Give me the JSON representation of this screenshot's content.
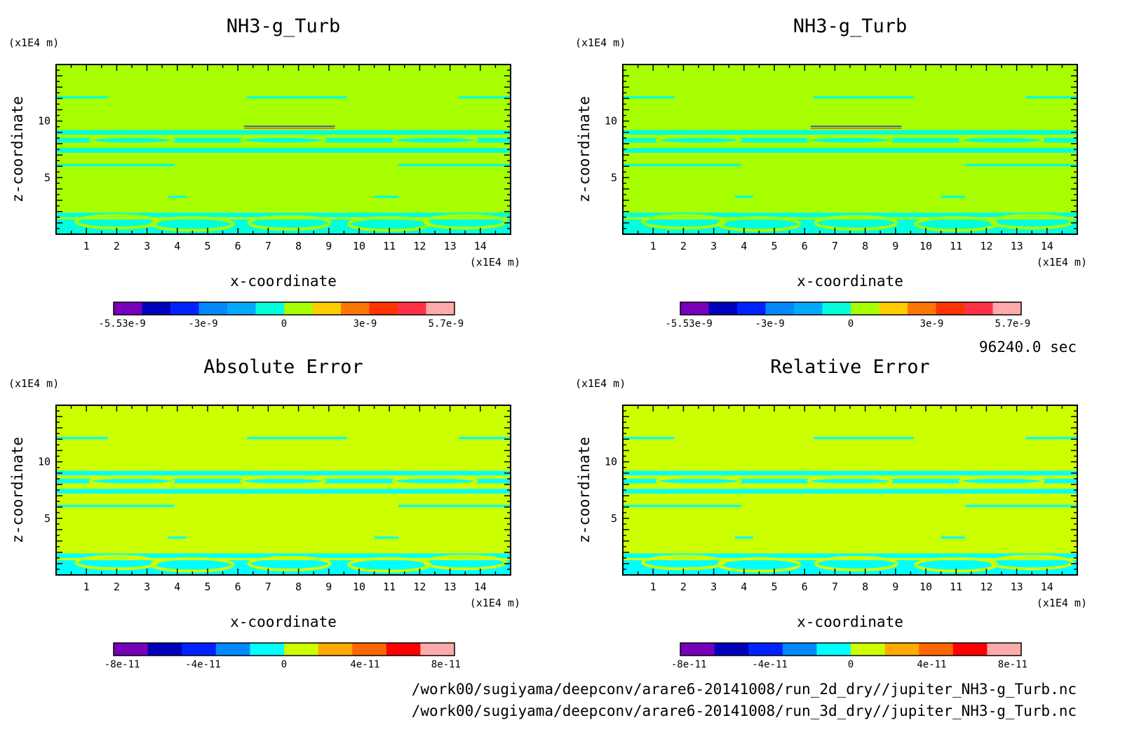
{
  "time_label": "96240.0 sec",
  "file_paths": [
    "/work00/sugiyama/deepconv/arare6-20141008/run_2d_dry//jupiter_NH3-g_Turb.nc",
    "/work00/sugiyama/deepconv/arare6-20141008/run_3d_dry//jupiter_NH3-g_Turb.nc"
  ],
  "colors": {
    "background_field": "#a8ff00",
    "near_zero": "#00ffdd",
    "error_field": "#ccff00",
    "error_band": "#00ffff"
  },
  "chart_data": [
    {
      "type": "heatmap",
      "title": "NH3-g_Turb",
      "xlabel": "x-coordinate",
      "ylabel": "z-coordinate",
      "x_unit": "(x1E4 m)",
      "y_unit": "(x1E4 m)",
      "xlim": [
        0,
        15
      ],
      "ylim": [
        0,
        15
      ],
      "x_ticks": [
        "1",
        "2",
        "3",
        "4",
        "5",
        "6",
        "7",
        "8",
        "9",
        "10",
        "11",
        "12",
        "13",
        "14"
      ],
      "y_ticks": [
        "5",
        "10"
      ],
      "colorbar": {
        "colors": [
          "#7700bb",
          "#0000bb",
          "#0022ff",
          "#0088ff",
          "#00aaff",
          "#00ffdd",
          "#a8ff00",
          "#ffcc00",
          "#ff7700",
          "#ff3300",
          "#ff3344",
          "#ffaaaa"
        ],
        "tick_labels": [
          "-5.53e-9",
          "-3e-9",
          "0",
          "3e-9",
          "5.7e-9"
        ]
      }
    },
    {
      "type": "heatmap",
      "title": "NH3-g_Turb",
      "xlabel": "x-coordinate",
      "ylabel": "z-coordinate",
      "x_unit": "(x1E4 m)",
      "y_unit": "(x1E4 m)",
      "xlim": [
        0,
        15
      ],
      "ylim": [
        0,
        15
      ],
      "x_ticks": [
        "1",
        "2",
        "3",
        "4",
        "5",
        "6",
        "7",
        "8",
        "9",
        "10",
        "11",
        "12",
        "13",
        "14"
      ],
      "y_ticks": [
        "5",
        "10"
      ],
      "colorbar": {
        "colors": [
          "#7700bb",
          "#0000bb",
          "#0022ff",
          "#0088ff",
          "#00aaff",
          "#00ffdd",
          "#a8ff00",
          "#ffcc00",
          "#ff7700",
          "#ff3300",
          "#ff3344",
          "#ffaaaa"
        ],
        "tick_labels": [
          "-5.53e-9",
          "-3e-9",
          "0",
          "3e-9",
          "5.7e-9"
        ]
      }
    },
    {
      "type": "heatmap",
      "title": "Absolute Error",
      "xlabel": "x-coordinate",
      "ylabel": "z-coordinate",
      "x_unit": "(x1E4 m)",
      "y_unit": "(x1E4 m)",
      "xlim": [
        0,
        15
      ],
      "ylim": [
        0,
        15
      ],
      "x_ticks": [
        "1",
        "2",
        "3",
        "4",
        "5",
        "6",
        "7",
        "8",
        "9",
        "10",
        "11",
        "12",
        "13",
        "14"
      ],
      "y_ticks": [
        "5",
        "10"
      ],
      "colorbar": {
        "colors": [
          "#7700bb",
          "#0000bb",
          "#0022ff",
          "#0088ff",
          "#00ffff",
          "#ccff00",
          "#ffaa00",
          "#ff6600",
          "#ff0000",
          "#ffaaaa"
        ],
        "tick_labels": [
          "-8e-11",
          "-4e-11",
          "0",
          "4e-11",
          "8e-11"
        ]
      }
    },
    {
      "type": "heatmap",
      "title": "Relative Error",
      "xlabel": "x-coordinate",
      "ylabel": "z-coordinate",
      "x_unit": "(x1E4 m)",
      "y_unit": "(x1E4 m)",
      "xlim": [
        0,
        15
      ],
      "ylim": [
        0,
        15
      ],
      "x_ticks": [
        "1",
        "2",
        "3",
        "4",
        "5",
        "6",
        "7",
        "8",
        "9",
        "10",
        "11",
        "12",
        "13",
        "14"
      ],
      "y_ticks": [
        "5",
        "10"
      ],
      "colorbar": {
        "colors": [
          "#7700bb",
          "#0000bb",
          "#0022ff",
          "#0088ff",
          "#00ffff",
          "#ccff00",
          "#ffaa00",
          "#ff6600",
          "#ff0000",
          "#ffaaaa"
        ],
        "tick_labels": [
          "-8e-11",
          "-4e-11",
          "0",
          "4e-11",
          "8e-11"
        ]
      }
    }
  ]
}
